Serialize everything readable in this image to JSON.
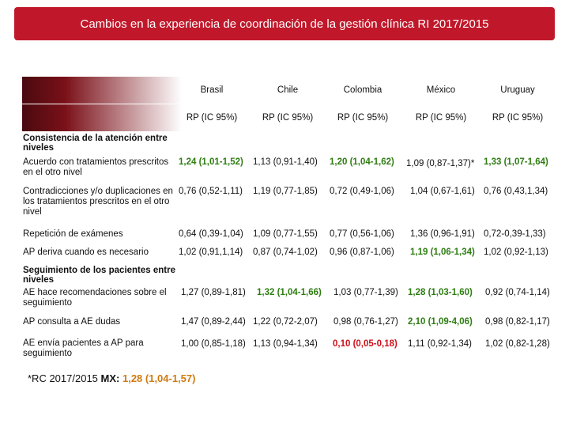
{
  "title": "Cambios en la experiencia de coordinación de la gestión clínica RI 2017/2015",
  "columns": [
    "Brasil",
    "Chile",
    "Colombia",
    "México",
    "Uruguay"
  ],
  "subheader": [
    "RP (IC 95%)",
    "RP (IC 95%)",
    "RP (IC 95%)",
    "RP (IC 95%)",
    "RP (IC 95%)"
  ],
  "section1": {
    "title": "Consistencia de la atención entre niveles"
  },
  "section2": {
    "title": "Seguimiento de los pacientes entre niveles"
  },
  "rows": [
    {
      "label": "Acuerdo con tratamientos prescritos en el otro nivel",
      "cells": [
        "1,24 (1,01-1,52)",
        "1,13 (0,91-1,40)",
        "1,20 (1,04-1,62)",
        "1,09 (0,87-1,37)*",
        "1,33 (1,07-1,64)"
      ]
    },
    {
      "label": "Contradicciones y/o duplicaciones en los tratamientos prescritos en el otro nivel",
      "cells": [
        "0,76 (0,52-1,11)",
        "1,19 (0,77-1,85)",
        "0,72 (0,49-1,06)",
        "1,04 (0,67-1,61)",
        "0,76 (0,43,1,34)"
      ]
    },
    {
      "label": "Repetición de exámenes",
      "cells": [
        "0,64 (0,39-1,04)",
        "1,09 (0,77-1,55)",
        "0,77 (0,56-1,06)",
        "1,36 (0,96-1,91)",
        "0,72-0,39-1,33)"
      ]
    },
    {
      "label": "AP deriva cuando es necesario",
      "cells": [
        "1,02 (0,91,1,14)",
        "0,87 (0,74-1,02)",
        "0,96 (0,87-1,06)",
        "1,19 (1,06-1,34)",
        "1,02 (0,92-1,13)"
      ]
    },
    {
      "label": "AE hace recomendaciones sobre el seguimiento",
      "cells": [
        "1,27 (0,89-1,81)",
        "1,32 (1,04-1,66)",
        "1,03 (0,77-1,39)",
        "1,28 (1,03-1,60)",
        "0,92 (0,74-1,14)"
      ]
    },
    {
      "label": "AP consulta a AE dudas",
      "cells": [
        "1,47 (0,89-2,44)",
        "1,22 (0,72-2,07)",
        "0,98 (0,76-1,27)",
        "2,10 (1,09-4,06)",
        "0,98 (0,82-1,17)"
      ]
    },
    {
      "label": "AE envía pacientes a AP para seguimiento",
      "cells": [
        "1,00 (0,85-1,18)",
        "1,13 (0,94-1,34)",
        "0,10 (0,05-0,18)",
        "1,11 (0,92-1,34)",
        "1,02 (0,82-1,28)"
      ]
    }
  ],
  "footnote": {
    "prefix": "*RC 2017/2015 ",
    "key": "MX:",
    "value": " 1,28 (1,04-1,57)"
  },
  "colors": {
    "title_bg": "#c0182a",
    "significant_up": "#2e7d12",
    "significant_down": "#d0101a",
    "footnote_value": "#d07a10"
  }
}
